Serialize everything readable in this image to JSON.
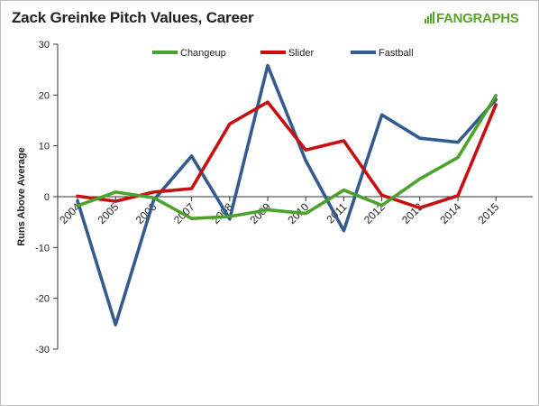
{
  "header": {
    "title": "Zack Greinke Pitch Values, Career",
    "logo_text": "FANGRAPHS"
  },
  "chart_data": {
    "type": "line",
    "title": "Zack Greinke Pitch Values, Career",
    "xlabel": "",
    "ylabel": "Runs Above Average",
    "categories": [
      "2004",
      "2005",
      "2006",
      "2007",
      "2008",
      "2009",
      "2010",
      "2011",
      "2012",
      "2013",
      "2014",
      "2015"
    ],
    "ylim": [
      -30,
      30
    ],
    "yticks": [
      30,
      20,
      10,
      0,
      -10,
      -20,
      -30
    ],
    "grid": false,
    "legend_position": "top",
    "series": [
      {
        "name": "Changeup",
        "color": "#4ca32c",
        "values": [
          -1.8,
          0.9,
          -0.2,
          -4.3,
          -3.9,
          -2.6,
          -3.3,
          1.3,
          -1.7,
          3.5,
          7.7,
          19.9
        ]
      },
      {
        "name": "Slider",
        "color": "#c70f0f",
        "values": [
          0.1,
          -0.9,
          0.9,
          1.6,
          14.3,
          18.6,
          9.2,
          11.0,
          0.3,
          -2.2,
          0.2,
          18.1
        ]
      },
      {
        "name": "Fastball",
        "color": "#345b8f",
        "values": [
          -0.8,
          -25.2,
          -0.7,
          8.0,
          -4.4,
          25.8,
          7.1,
          -6.7,
          16.1,
          11.5,
          10.7,
          19.1
        ]
      }
    ]
  }
}
